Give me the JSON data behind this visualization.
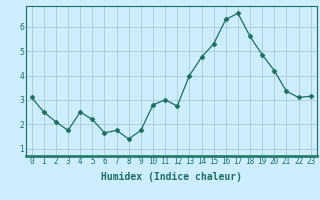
{
  "x": [
    0,
    1,
    2,
    3,
    4,
    5,
    6,
    7,
    8,
    9,
    10,
    11,
    12,
    13,
    14,
    15,
    16,
    17,
    18,
    19,
    20,
    21,
    22,
    23
  ],
  "y": [
    3.1,
    2.5,
    2.1,
    1.75,
    2.5,
    2.2,
    1.65,
    1.75,
    1.4,
    1.75,
    2.8,
    3.0,
    2.75,
    4.0,
    4.75,
    5.3,
    6.3,
    6.55,
    5.6,
    4.85,
    4.2,
    3.35,
    3.1,
    3.15
  ],
  "line_color": "#1e6e60",
  "marker": "D",
  "marker_size": 2.5,
  "bg_color": "#cceeff",
  "plot_bg_color": "#cceeff",
  "grid_color": "#aacccc",
  "xlabel": "Humidex (Indice chaleur)",
  "ylim": [
    0.7,
    6.85
  ],
  "xlim": [
    -0.5,
    23.5
  ],
  "yticks": [
    1,
    2,
    3,
    4,
    5,
    6
  ],
  "xticks": [
    0,
    1,
    2,
    3,
    4,
    5,
    6,
    7,
    8,
    9,
    10,
    11,
    12,
    13,
    14,
    15,
    16,
    17,
    18,
    19,
    20,
    21,
    22,
    23
  ],
  "tick_fontsize": 5.5,
  "xlabel_fontsize": 7.0,
  "axis_color": "#1e6e60",
  "bottom_bar_color": "#2a7d6e"
}
